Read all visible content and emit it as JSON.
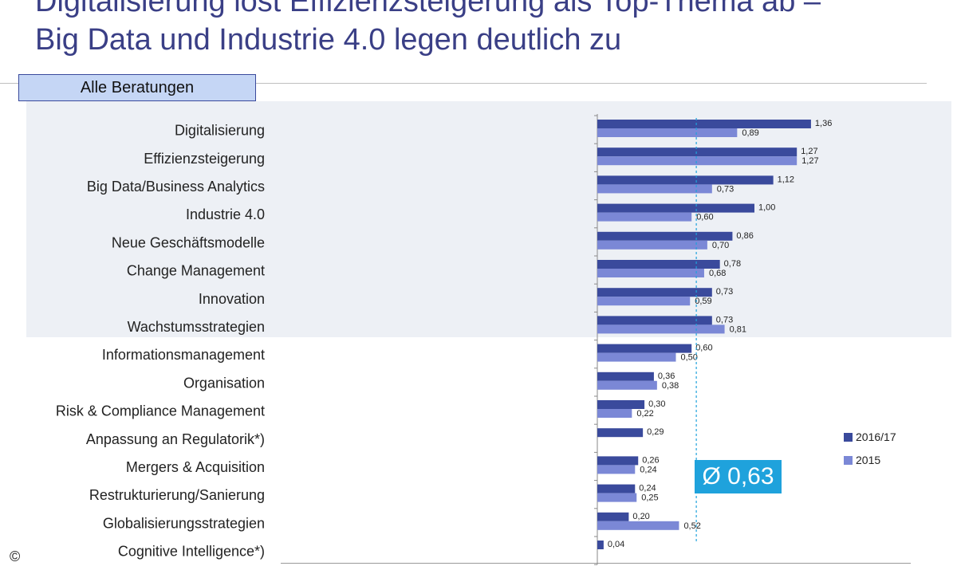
{
  "title": {
    "line1": "Digitalisierung löst Effizienzsteigerung als Top-Thema ab –",
    "line2": "Big Data und Industrie 4.0 legen deutlich zu"
  },
  "subtitle": "Alle Beratungen",
  "average_label": "Ø 0,63",
  "copyright": "©",
  "colors": {
    "series_2016": "#3a4a9c",
    "series_2015": "#7b88d6",
    "average_line": "#1fa2dc",
    "highlight_band": "#edf0f5"
  },
  "chart_data": {
    "type": "bar",
    "orientation": "horizontal",
    "highlighted_categories": 8,
    "categories": [
      "Digitalisierung",
      "Effizienzsteigerung",
      "Big Data/Business Analytics",
      "Industrie 4.0",
      "Neue Geschäftsmodelle",
      "Change Management",
      "Innovation",
      "Wachstumsstrategien",
      "Informationsmanagement",
      "Organisation",
      "Risk & Compliance Management",
      "Anpassung an Regulatorik*)",
      "Mergers & Acquisition",
      "Restrukturierung/Sanierung",
      "Globalisierungsstrategien",
      "Cognitive Intelligence*)"
    ],
    "series": [
      {
        "name": "2016/17",
        "values": [
          1.36,
          1.27,
          1.12,
          1.0,
          0.86,
          0.78,
          0.73,
          0.73,
          0.6,
          0.36,
          0.3,
          0.29,
          0.26,
          0.24,
          0.2,
          0.04
        ],
        "labels": [
          "1,36",
          "1,27",
          "1,12",
          "1,00",
          "0,86",
          "0,78",
          "0,73",
          "0,73",
          "0,60",
          "0,36",
          "0,30",
          "0,29",
          "0,26",
          "0,24",
          "0,20",
          "0,04"
        ]
      },
      {
        "name": "2015",
        "values": [
          0.89,
          1.27,
          0.73,
          0.6,
          0.7,
          0.68,
          0.59,
          0.81,
          0.5,
          0.38,
          0.22,
          null,
          0.24,
          0.25,
          0.52,
          null
        ],
        "labels": [
          "0,89",
          "1,27",
          "0,73",
          "0,60",
          "0,70",
          "0,68",
          "0,59",
          "0,81",
          "0,50",
          "0,38",
          "0,22",
          null,
          "0,24",
          "0,25",
          "0,52",
          null
        ]
      }
    ],
    "average": 0.63,
    "legend_position": "right",
    "grid": false
  }
}
